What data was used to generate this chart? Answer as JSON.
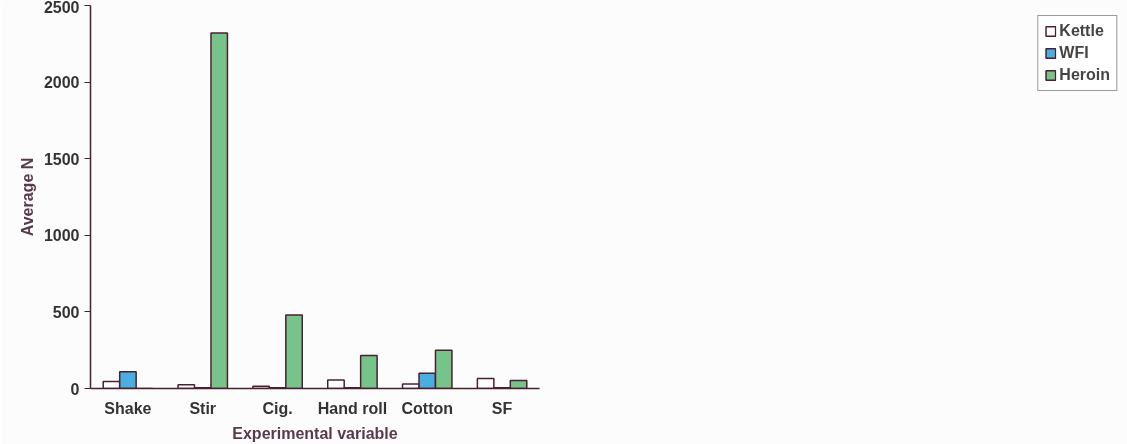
{
  "chart_data": {
    "type": "bar",
    "categories": [
      "Shake",
      "Stir",
      "Cig.",
      "Hand roll",
      "Cotton",
      "SF"
    ],
    "series": [
      {
        "name": "Kettle",
        "color": "#ffffff",
        "values": [
          45,
          25,
          15,
          55,
          30,
          65
        ]
      },
      {
        "name": "WFI",
        "color": "#4aaee0",
        "values": [
          110,
          5,
          5,
          5,
          100,
          5
        ]
      },
      {
        "name": "Heroin",
        "color": "#77c48a",
        "values": [
          0,
          2320,
          480,
          215,
          250,
          52
        ]
      }
    ],
    "xlabel": "Experimental variable",
    "ylabel": "Average N",
    "ylim": [
      0,
      2500
    ],
    "yticks": [
      0,
      500,
      1000,
      1500,
      2000,
      2500
    ],
    "grid": false,
    "legend": "right"
  }
}
